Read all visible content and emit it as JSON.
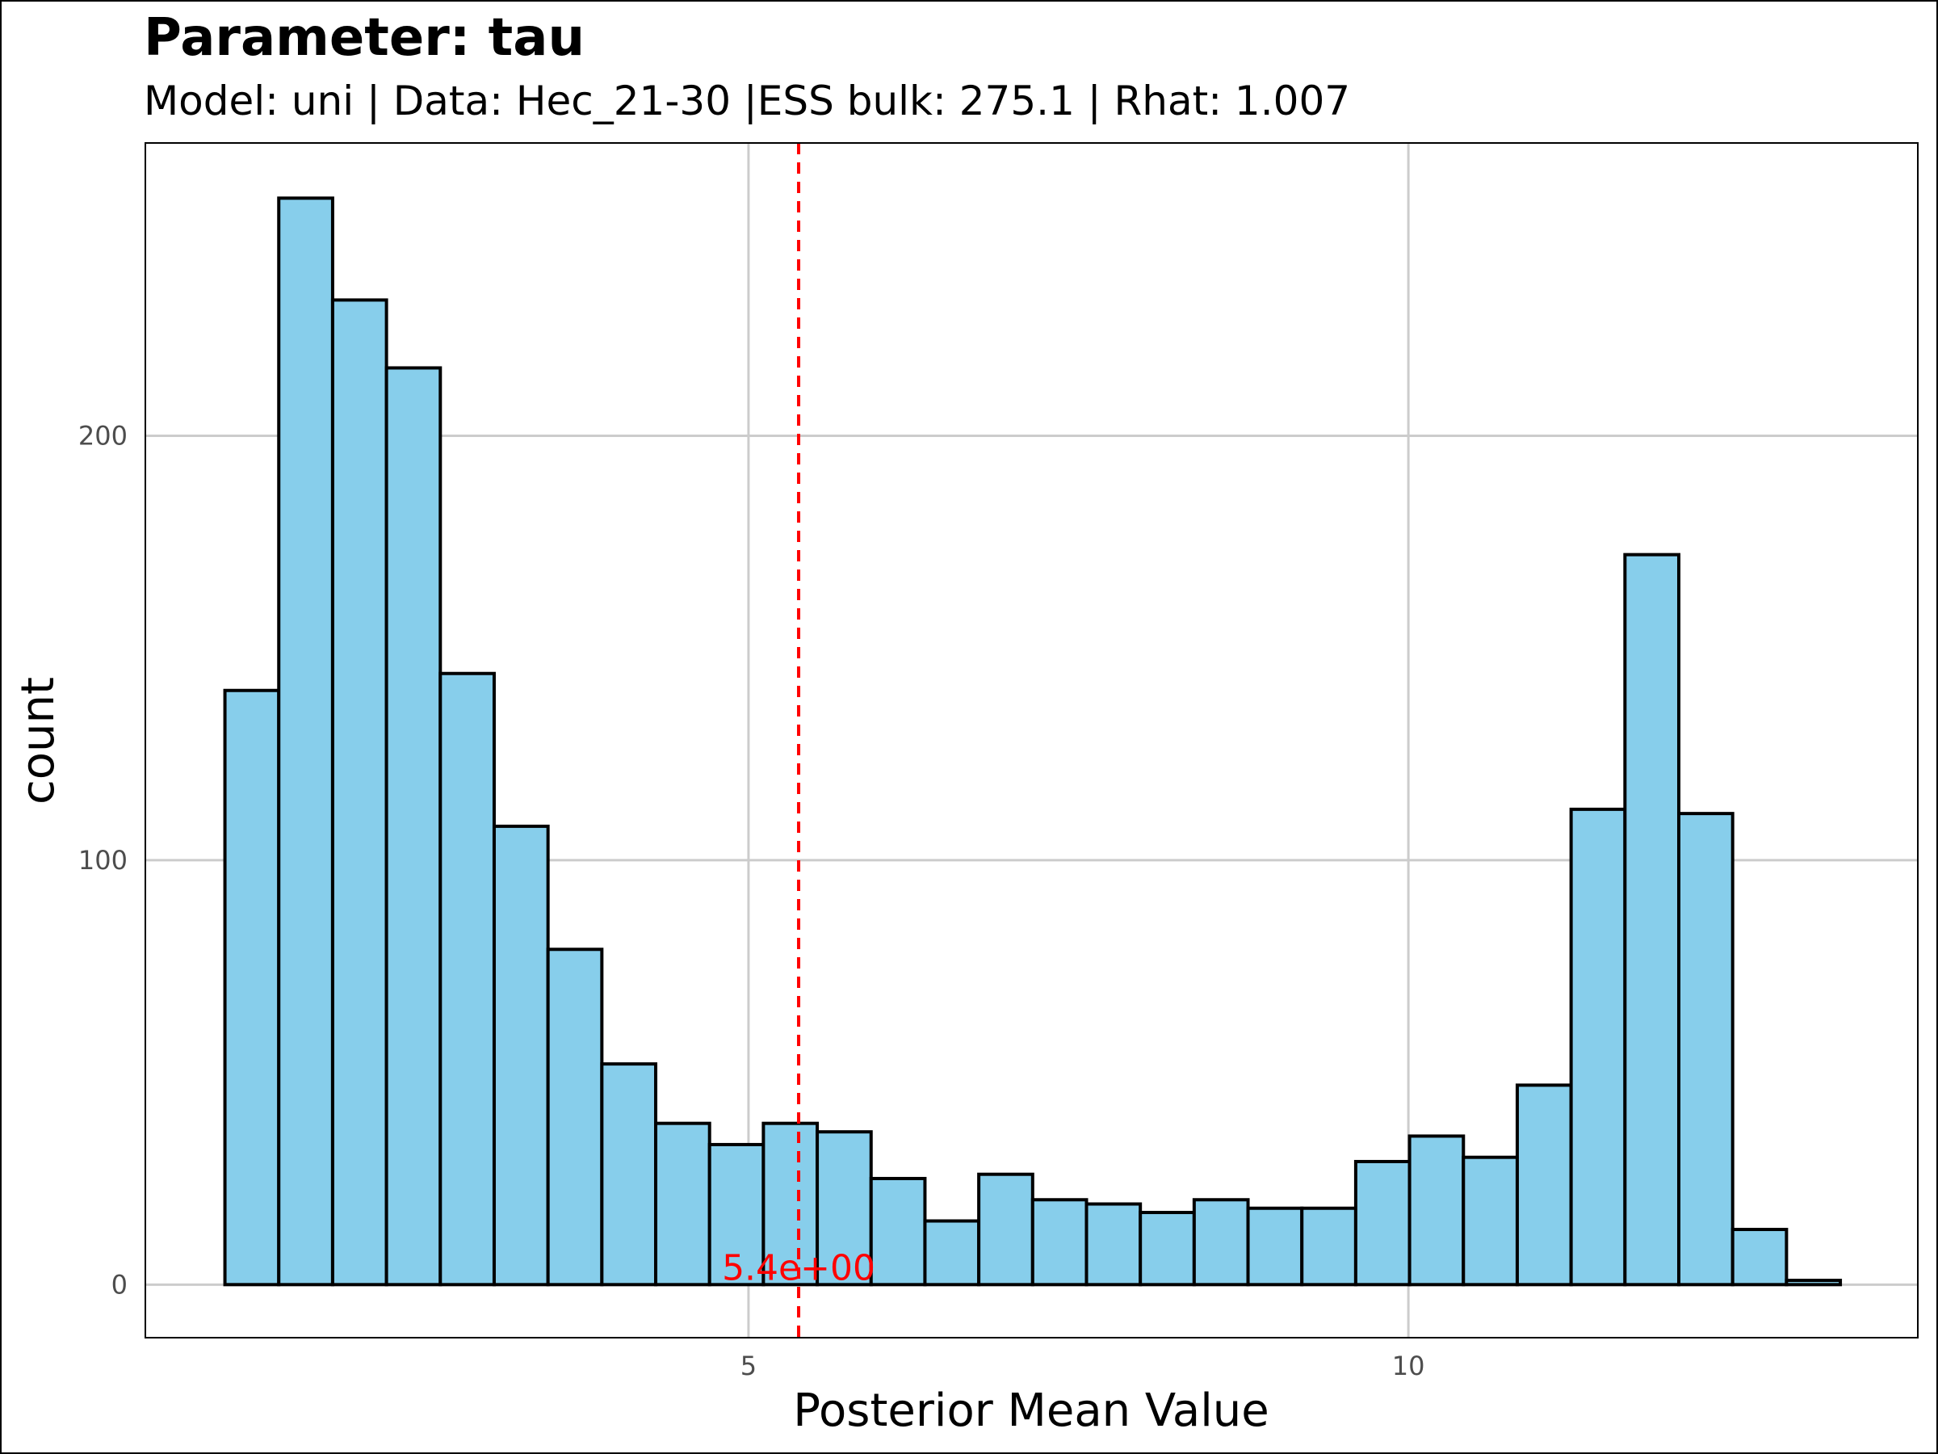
{
  "colors": {
    "bar_fill": "#87CEEB",
    "bar_stroke": "#000000",
    "grid": "#cccccc",
    "mean_line": "#ff0000",
    "tick_text": "#4d4d4d"
  },
  "chart_data": {
    "type": "bar",
    "title": "Parameter: tau",
    "subtitle": "Model: uni | Data: Hec_21-30 |ESS bulk: 275.1 | Rhat: 1.007",
    "xlabel": "Posterior Mean Value",
    "ylabel": "count",
    "xlim": [
      0.43,
      13.86
    ],
    "ylim": [
      -12.5,
      269
    ],
    "x_ticks": [
      5,
      10
    ],
    "y_ticks": [
      0,
      100,
      200
    ],
    "grid": true,
    "bin_width": 0.408,
    "bin_edges_start": 1.033,
    "counts": [
      140,
      256,
      232,
      216,
      144,
      108,
      79,
      52,
      38,
      33,
      38,
      36,
      25,
      15,
      26,
      20,
      19,
      17,
      20,
      18,
      18,
      29,
      35,
      30,
      47,
      112,
      172,
      111,
      13,
      1
    ],
    "mean_line": {
      "x": 5.38,
      "label": "5.4e+00"
    }
  }
}
